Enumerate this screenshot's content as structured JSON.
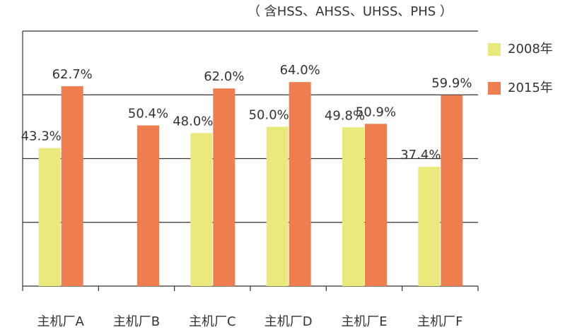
{
  "chart_data": {
    "type": "bar",
    "subtitle": "（ 含HSS、AHSS、UHSS、PHS ）",
    "categories": [
      "主机厂A",
      "主机厂B",
      "主机厂C",
      "主机厂D",
      "主机厂E",
      "主机厂F"
    ],
    "series": [
      {
        "name": "2008年",
        "color": "#e9e97c",
        "values": [
          43.3,
          null,
          48.0,
          50.0,
          49.8,
          37.4
        ],
        "value_labels": [
          "43.3%",
          null,
          "48.0%",
          "50.0%",
          "49.8%",
          "37.4%"
        ]
      },
      {
        "name": "2015年",
        "color": "#ee7d50",
        "values": [
          62.7,
          50.4,
          62.0,
          64.0,
          50.9,
          59.9
        ],
        "value_labels": [
          "62.7%",
          "50.4%",
          "62.0%",
          "64.0%",
          "50.9%",
          "59.9%"
        ]
      }
    ],
    "ylim": [
      0,
      80
    ],
    "yticks": [
      0,
      20,
      40,
      60,
      80
    ],
    "grid": true,
    "legend": "right"
  }
}
